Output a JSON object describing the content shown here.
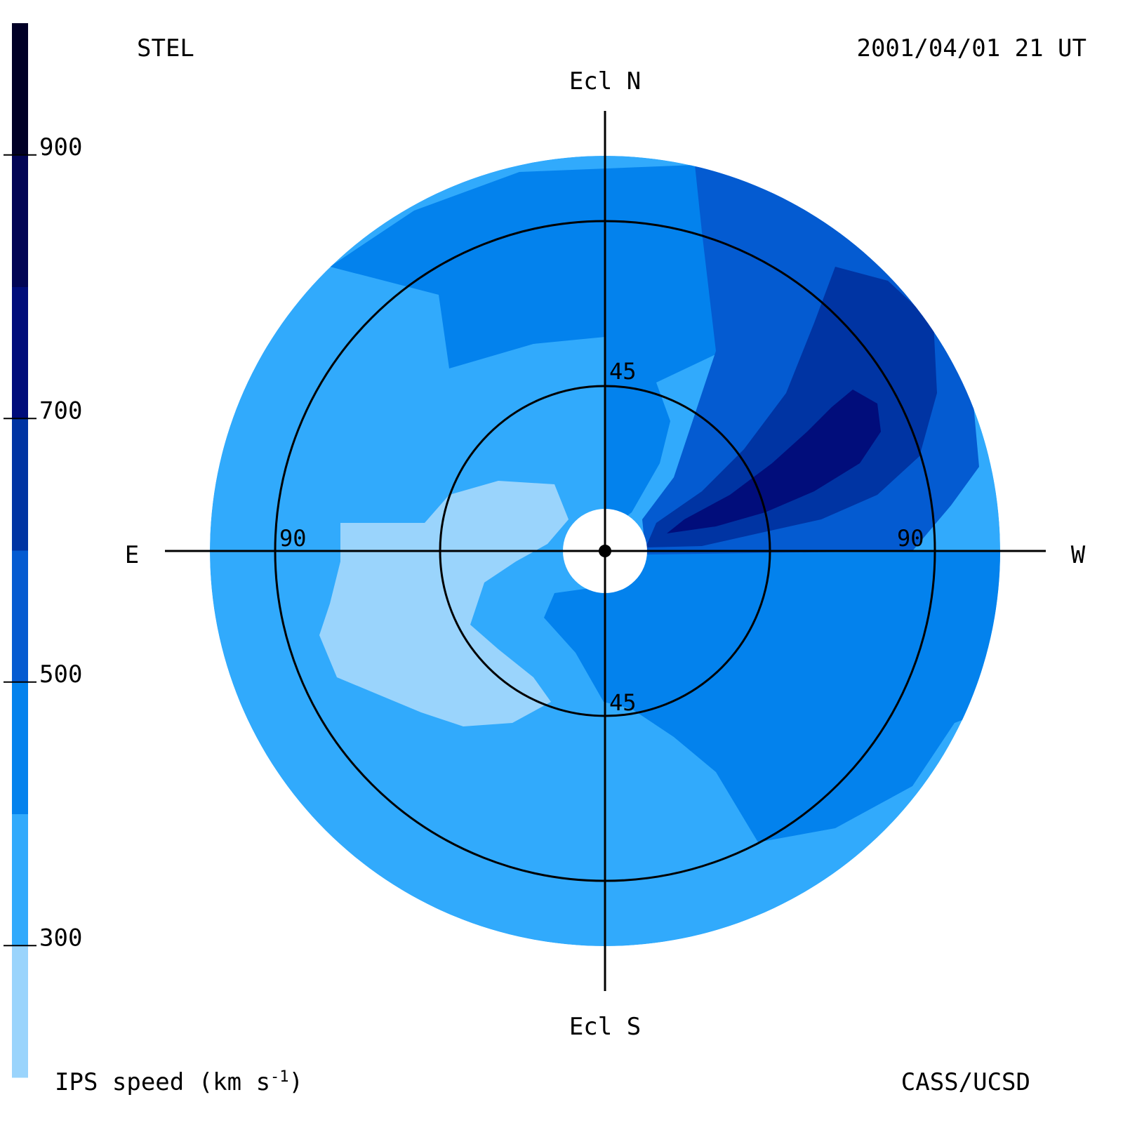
{
  "header": {
    "source_label": "STEL",
    "timestamp": "2001/04/01 21 UT",
    "credit": "CASS/UCSD"
  },
  "chart_data": {
    "type": "heatmap",
    "projection": "polar sky map (elongation from Sun)",
    "direction_labels": {
      "north": "Ecl N",
      "south": "Ecl S",
      "east": "E",
      "west": "W"
    },
    "elongation_circles_deg": [
      45,
      90
    ],
    "max_elongation_deg": 108,
    "colorbar": {
      "label_prefix": "IPS speed (km s",
      "label_exponent": "-1",
      "label_suffix": ")",
      "range": [
        200,
        1000
      ],
      "tick_values": [
        300,
        500,
        700,
        900
      ],
      "tick_labels": [
        "300",
        "500",
        "700",
        "900"
      ],
      "levels": [
        {
          "min": 200,
          "max": 300,
          "color": "#9ad4fc"
        },
        {
          "min": 300,
          "max": 400,
          "color": "#31aafc"
        },
        {
          "min": 400,
          "max": 500,
          "color": "#0382ed"
        },
        {
          "min": 500,
          "max": 600,
          "color": "#045bd1"
        },
        {
          "min": 600,
          "max": 700,
          "color": "#0034a3"
        },
        {
          "min": 700,
          "max": 800,
          "color": "#010d7b"
        },
        {
          "min": 800,
          "max": 900,
          "color": "#020555"
        },
        {
          "min": 900,
          "max": 1000,
          "color": "#010026"
        }
      ]
    },
    "regions_speed_km_s": {
      "background": 350,
      "east_low_speed_region": 250,
      "north_moderate_region": 450,
      "northwest_band": 550,
      "northwest_stream": 650,
      "northwest_core": 750,
      "southwest_region": 450
    }
  }
}
